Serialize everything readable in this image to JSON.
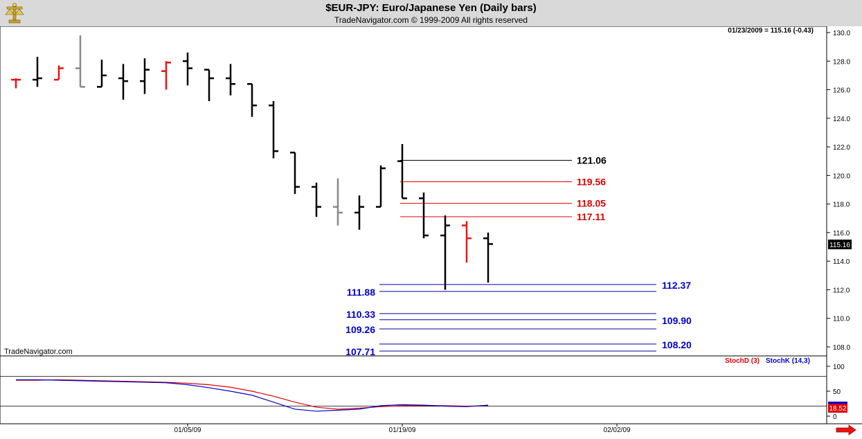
{
  "header": {
    "title": "$EUR-JPY:  Euro/Japanese Yen  (Daily bars)",
    "copyright": "TradeNavigator.com © 1999-2009 All rights reserved"
  },
  "watermark": "TradeNavigator.com",
  "last_bar_info": "01/23/2009 = 115.16 (-0.43)",
  "last_price_tag": "115.16",
  "indicator_value_tag": "18.52",
  "icons": {
    "logo": "scales-of-justice-logo-icon",
    "scroll": "right-arrow-icon"
  },
  "colors": {
    "up_bar": "#000000",
    "down_bar": "#ff0000",
    "neutral_bar": "#808080",
    "fib_black": "#000000",
    "fib_red": "#dd0000",
    "fib_blue": "#0000cc",
    "stochD": "#dd0000",
    "stochK": "#0000cc"
  },
  "chart_data": [
    {
      "type": "ohlc",
      "title": "$EUR-JPY:  Euro/Japanese Yen  (Daily bars)",
      "ylim": [
        106.5,
        130.5
      ],
      "yticks": [
        "130.0",
        "128.0",
        "126.0",
        "124.0",
        "122.0",
        "120.0",
        "118.0",
        "116.0",
        "114.0",
        "112.0",
        "110.0",
        "108.0"
      ],
      "xticks": [
        {
          "label": "01/05/09",
          "index": 8
        },
        {
          "label": "01/19/09",
          "index": 18
        },
        {
          "label": "02/02/09",
          "index": 28
        }
      ],
      "bars": [
        {
          "o": 126.7,
          "h": 126.8,
          "l": 126.1,
          "c": 126.7,
          "color": "red"
        },
        {
          "o": 126.7,
          "h": 128.3,
          "l": 126.2,
          "c": 126.8,
          "color": "black"
        },
        {
          "o": 126.7,
          "h": 127.7,
          "l": 126.7,
          "c": 127.5,
          "color": "red"
        },
        {
          "o": 127.5,
          "h": 129.8,
          "l": 126.2,
          "c": 126.2,
          "color": "gray"
        },
        {
          "o": 126.2,
          "h": 128.1,
          "l": 126.2,
          "c": 127.0,
          "color": "black"
        },
        {
          "o": 126.8,
          "h": 127.8,
          "l": 125.3,
          "c": 126.6,
          "color": "black"
        },
        {
          "o": 126.6,
          "h": 128.2,
          "l": 125.7,
          "c": 127.4,
          "color": "black"
        },
        {
          "o": 127.3,
          "h": 128.0,
          "l": 126.0,
          "c": 127.9,
          "color": "red"
        },
        {
          "o": 128.0,
          "h": 128.6,
          "l": 126.3,
          "c": 127.5,
          "color": "black"
        },
        {
          "o": 127.4,
          "h": 127.4,
          "l": 125.2,
          "c": 126.8,
          "color": "black"
        },
        {
          "o": 126.8,
          "h": 127.8,
          "l": 125.6,
          "c": 126.4,
          "color": "black"
        },
        {
          "o": 126.4,
          "h": 126.4,
          "l": 124.1,
          "c": 124.9,
          "color": "black"
        },
        {
          "o": 124.9,
          "h": 125.2,
          "l": 121.2,
          "c": 121.7,
          "color": "black"
        },
        {
          "o": 121.6,
          "h": 121.6,
          "l": 118.7,
          "c": 119.2,
          "color": "black"
        },
        {
          "o": 119.2,
          "h": 119.5,
          "l": 117.1,
          "c": 117.8,
          "color": "black"
        },
        {
          "o": 117.8,
          "h": 119.8,
          "l": 116.5,
          "c": 117.4,
          "color": "gray"
        },
        {
          "o": 117.4,
          "h": 118.6,
          "l": 116.2,
          "c": 117.8,
          "color": "black"
        },
        {
          "o": 117.8,
          "h": 120.7,
          "l": 117.8,
          "c": 120.5,
          "color": "black"
        },
        {
          "o": 121.0,
          "h": 122.2,
          "l": 118.4,
          "c": 118.4,
          "color": "black"
        },
        {
          "o": 118.4,
          "h": 118.8,
          "l": 115.6,
          "c": 115.8,
          "color": "black"
        },
        {
          "o": 115.8,
          "h": 117.2,
          "l": 112.0,
          "c": 116.5,
          "color": "black"
        },
        {
          "o": 116.5,
          "h": 116.8,
          "l": 113.9,
          "c": 115.6,
          "color": "red"
        },
        {
          "o": 115.6,
          "h": 116.0,
          "l": 112.5,
          "c": 115.2,
          "color": "black"
        }
      ],
      "fib_upper": [
        {
          "value": 121.06,
          "label": "121.06",
          "color": "black"
        },
        {
          "value": 119.56,
          "label": "119.56",
          "color": "red"
        },
        {
          "value": 118.05,
          "label": "118.05",
          "color": "red"
        },
        {
          "value": 117.11,
          "label": "117.11",
          "color": "red"
        }
      ],
      "fib_lower": [
        {
          "value": 112.37,
          "label": "112.37",
          "side": "right"
        },
        {
          "value": 111.88,
          "label": "111.88",
          "side": "left"
        },
        {
          "value": 110.33,
          "label": "110.33",
          "side": "left"
        },
        {
          "value": 109.9,
          "label": "109.90",
          "side": "right"
        },
        {
          "value": 109.26,
          "label": "109.26",
          "side": "left"
        },
        {
          "value": 108.2,
          "label": "108.20",
          "side": "right"
        },
        {
          "value": 107.71,
          "label": "107.71",
          "side": "left"
        }
      ]
    },
    {
      "type": "line",
      "legend": [
        {
          "name": "StochD (3)",
          "color": "red"
        },
        {
          "name": "StochK (14,3)",
          "color": "blue"
        }
      ],
      "ylim": [
        0,
        100
      ],
      "yticks": [
        "100",
        "50",
        "0"
      ],
      "hlines": [
        80,
        20
      ],
      "x": [
        0,
        1,
        2,
        3,
        4,
        5,
        6,
        7,
        8,
        9,
        10,
        11,
        12,
        13,
        14,
        15,
        16,
        17,
        18,
        19,
        20,
        21,
        22
      ],
      "series": [
        {
          "name": "StochD (3)",
          "values": [
            72,
            72,
            73,
            72,
            71,
            70,
            69,
            68,
            66,
            63,
            58,
            50,
            40,
            28,
            18,
            14,
            16,
            19,
            21,
            21,
            21,
            20,
            21
          ]
        },
        {
          "name": "StochK (14,3)",
          "values": [
            73,
            73,
            72,
            71,
            70,
            69,
            68,
            67,
            63,
            57,
            50,
            42,
            28,
            14,
            10,
            12,
            14,
            21,
            23,
            22,
            20,
            19,
            22
          ]
        }
      ]
    }
  ]
}
